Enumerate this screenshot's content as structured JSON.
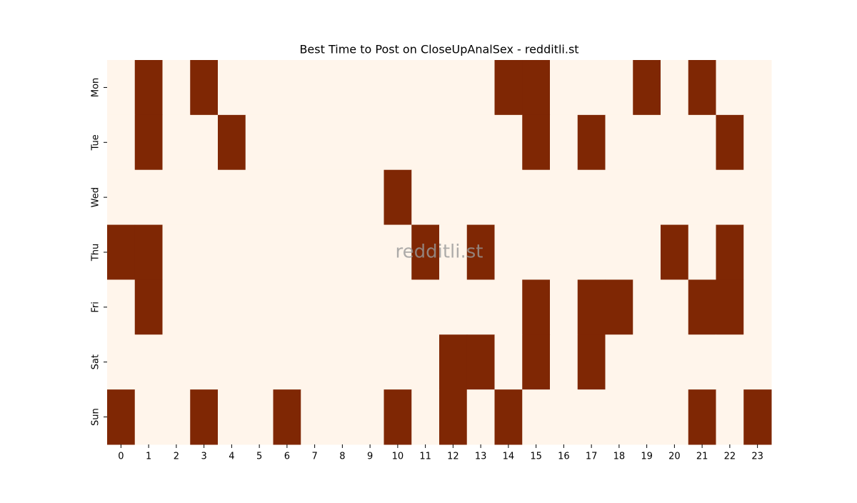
{
  "chart_data": {
    "type": "heatmap",
    "title": "Best Time to Post on CloseUpAnalSex - redditli.st",
    "watermark": "redditli.st",
    "x": [
      0,
      1,
      2,
      3,
      4,
      5,
      6,
      7,
      8,
      9,
      10,
      11,
      12,
      13,
      14,
      15,
      16,
      17,
      18,
      19,
      20,
      21,
      22,
      23
    ],
    "categories": [
      "Mon",
      "Tue",
      "Wed",
      "Thu",
      "Fri",
      "Sat",
      "Sun"
    ],
    "colors": [
      "#fff5eb",
      "#7f2704"
    ],
    "values": [
      [
        0,
        1,
        0,
        1,
        0,
        0,
        0,
        0,
        0,
        0,
        0,
        0,
        0,
        0,
        1,
        1,
        0,
        0,
        0,
        1,
        0,
        1,
        0,
        0
      ],
      [
        0,
        1,
        0,
        0,
        1,
        0,
        0,
        0,
        0,
        0,
        0,
        0,
        0,
        0,
        0,
        1,
        0,
        1,
        0,
        0,
        0,
        0,
        1,
        0
      ],
      [
        0,
        0,
        0,
        0,
        0,
        0,
        0,
        0,
        0,
        0,
        1,
        0,
        0,
        0,
        0,
        0,
        0,
        0,
        0,
        0,
        0,
        0,
        0,
        0
      ],
      [
        1,
        1,
        0,
        0,
        0,
        0,
        0,
        0,
        0,
        0,
        0,
        1,
        0,
        1,
        0,
        0,
        0,
        0,
        0,
        0,
        1,
        0,
        1,
        0
      ],
      [
        0,
        1,
        0,
        0,
        0,
        0,
        0,
        0,
        0,
        0,
        0,
        0,
        0,
        0,
        0,
        1,
        0,
        1,
        1,
        0,
        0,
        1,
        1,
        0
      ],
      [
        0,
        0,
        0,
        0,
        0,
        0,
        0,
        0,
        0,
        0,
        0,
        0,
        1,
        1,
        0,
        1,
        0,
        1,
        0,
        0,
        0,
        0,
        0,
        0
      ],
      [
        1,
        0,
        0,
        1,
        0,
        0,
        1,
        0,
        0,
        0,
        1,
        0,
        1,
        0,
        1,
        0,
        0,
        0,
        0,
        0,
        0,
        1,
        0,
        1
      ]
    ]
  }
}
